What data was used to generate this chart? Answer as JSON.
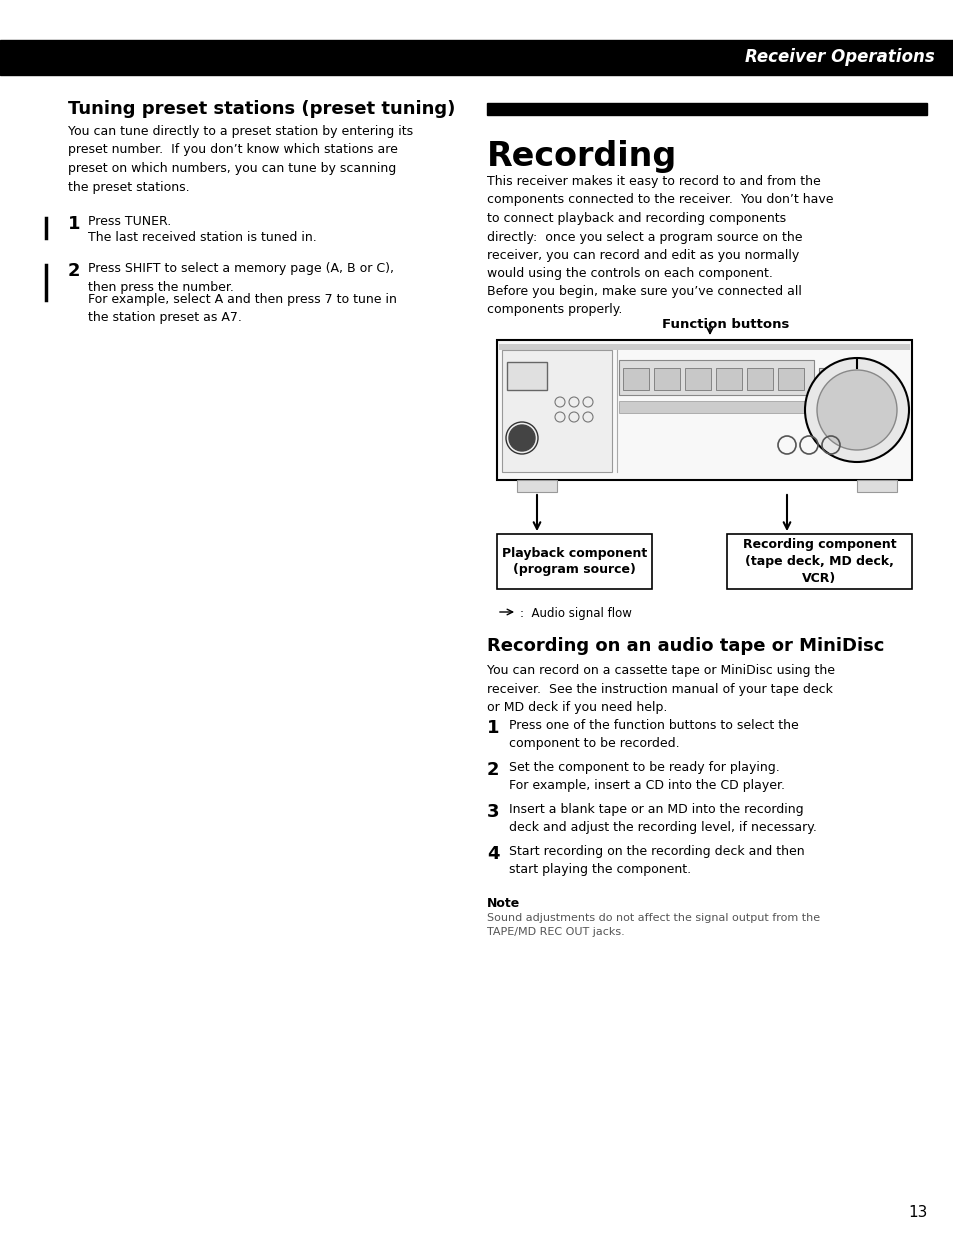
{
  "page_bg": "#ffffff",
  "header_bg": "#000000",
  "header_text": "Receiver Operations",
  "header_text_color": "#ffffff",
  "left_section_title": "Tuning preset stations (preset tuning)",
  "left_section_body": "You can tune directly to a preset station by entering its\npreset number.  If you don’t know which stations are\npreset on which numbers, you can tune by scanning\nthe preset stations.",
  "left_steps": [
    {
      "num": "1",
      "main": "Press TUNER.",
      "sub": "The last received station is tuned in."
    },
    {
      "num": "2",
      "main": "Press SHIFT to select a memory page (A, B or C),\nthen press the number.",
      "sub": "For example, select A and then press 7 to tune in\nthe station preset as A7."
    }
  ],
  "right_section_title": "Recording",
  "right_section_body": "This receiver makes it easy to record to and from the\ncomponents connected to the receiver.  You don’t have\nto connect playback and recording components\ndirectly:  once you select a program source on the\nreceiver, you can record and edit as you normally\nwould using the controls on each component.",
  "right_section_body2": "Before you begin, make sure you’ve connected all\ncomponents properly.",
  "diagram_label_top": "Function buttons",
  "diagram_label_left": "Playback component\n(program source)",
  "diagram_label_right": "Recording component\n(tape deck, MD deck,\nVCR)",
  "right_section2_title": "Recording on an audio tape or MiniDisc",
  "right_section2_body": "You can record on a cassette tape or MiniDisc using the\nreceiver.  See the instruction manual of your tape deck\nor MD deck if you need help.",
  "right_steps": [
    {
      "num": "1",
      "text": "Press one of the function buttons to select the\ncomponent to be recorded."
    },
    {
      "num": "2",
      "text": "Set the component to be ready for playing.\nFor example, insert a CD into the CD player."
    },
    {
      "num": "3",
      "text": "Insert a blank tape or an MD into the recording\ndeck and adjust the recording level, if necessary."
    },
    {
      "num": "4",
      "text": "Start recording on the recording deck and then\nstart playing the component."
    }
  ],
  "note_title": "Note",
  "note_body": "Sound adjustments do not affect the signal output from the\nTAPE/MD REC OUT jacks.",
  "page_number": "13"
}
